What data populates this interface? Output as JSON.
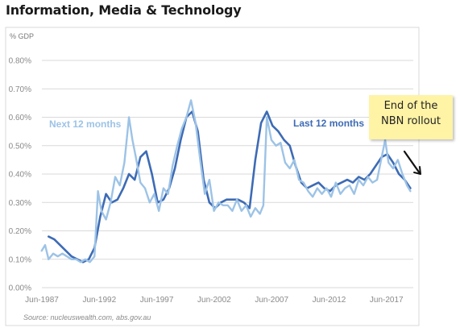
{
  "title": "Information, Media & Technology",
  "chart_data": {
    "type": "line",
    "ylabel": "% GDP",
    "ylim": [
      0,
      0.8
    ],
    "y_ticks": [
      "0.00%",
      "0.10%",
      "0.20%",
      "0.30%",
      "0.40%",
      "0.50%",
      "0.60%",
      "0.70%",
      "0.80%"
    ],
    "y_tick_values": [
      0,
      0.1,
      0.2,
      0.3,
      0.4,
      0.5,
      0.6,
      0.7,
      0.8
    ],
    "xlim": [
      1987.42,
      2019.75
    ],
    "x_ticks": [
      "Jun-1987",
      "Jun-1992",
      "Jun-1997",
      "Jun-2002",
      "Jun-2007",
      "Jun-2012",
      "Jun-2017"
    ],
    "x_tick_values": [
      1987.42,
      1992.42,
      1997.42,
      2002.42,
      2007.42,
      2012.42,
      2017.42
    ],
    "grid": true,
    "source": "Source: nucleuswealth.com, abs.gov.au",
    "series": [
      {
        "name": "Last 12 months",
        "color": "#3d6bb5",
        "x": [
          1988.0,
          1988.5,
          1989.0,
          1989.5,
          1990.0,
          1990.5,
          1991.0,
          1991.5,
          1992.0,
          1992.5,
          1993.0,
          1993.5,
          1994.0,
          1994.5,
          1995.0,
          1995.5,
          1996.0,
          1996.5,
          1997.0,
          1997.5,
          1998.0,
          1998.5,
          1999.0,
          1999.5,
          2000.0,
          2000.5,
          2001.0,
          2001.5,
          2002.0,
          2002.5,
          2003.0,
          2003.5,
          2004.0,
          2004.5,
          2005.0,
          2005.5,
          2006.0,
          2006.5,
          2007.0,
          2007.5,
          2008.0,
          2008.5,
          2009.0,
          2009.5,
          2010.0,
          2010.5,
          2011.0,
          2011.5,
          2012.0,
          2012.5,
          2013.0,
          2013.5,
          2014.0,
          2014.5,
          2015.0,
          2015.5,
          2016.0,
          2016.5,
          2017.0,
          2017.5,
          2018.0,
          2018.5,
          2019.0,
          2019.5
        ],
        "values": [
          0.18,
          0.17,
          0.15,
          0.13,
          0.11,
          0.1,
          0.09,
          0.1,
          0.14,
          0.25,
          0.33,
          0.3,
          0.31,
          0.35,
          0.4,
          0.38,
          0.46,
          0.48,
          0.4,
          0.3,
          0.31,
          0.35,
          0.42,
          0.52,
          0.6,
          0.62,
          0.55,
          0.38,
          0.3,
          0.28,
          0.3,
          0.31,
          0.31,
          0.31,
          0.3,
          0.28,
          0.45,
          0.58,
          0.62,
          0.57,
          0.55,
          0.52,
          0.5,
          0.43,
          0.37,
          0.35,
          0.36,
          0.37,
          0.35,
          0.34,
          0.36,
          0.37,
          0.38,
          0.37,
          0.39,
          0.38,
          0.4,
          0.43,
          0.46,
          0.47,
          0.44,
          0.4,
          0.38,
          0.35
        ]
      },
      {
        "name": "Next 12 months",
        "color": "#9dc3e6",
        "x": [
          1987.4,
          1987.7,
          1988.0,
          1988.4,
          1988.8,
          1989.2,
          1989.6,
          1990.0,
          1990.4,
          1990.8,
          1991.2,
          1991.6,
          1992.0,
          1992.3,
          1992.6,
          1993.0,
          1993.4,
          1993.8,
          1994.2,
          1994.6,
          1995.0,
          1995.3,
          1995.6,
          1996.0,
          1996.4,
          1996.8,
          1997.2,
          1997.6,
          1998.0,
          1998.4,
          1998.8,
          1999.2,
          1999.6,
          2000.0,
          2000.4,
          2000.8,
          2001.2,
          2001.6,
          2002.0,
          2002.4,
          2002.8,
          2003.2,
          2003.6,
          2004.0,
          2004.4,
          2004.8,
          2005.2,
          2005.6,
          2006.0,
          2006.4,
          2006.7,
          2007.0,
          2007.4,
          2007.8,
          2008.2,
          2008.6,
          2009.0,
          2009.4,
          2009.8,
          2010.2,
          2010.6,
          2011.0,
          2011.4,
          2011.8,
          2012.2,
          2012.6,
          2013.0,
          2013.4,
          2013.8,
          2014.2,
          2014.6,
          2015.0,
          2015.4,
          2015.8,
          2016.2,
          2016.6,
          2017.0,
          2017.3,
          2017.6,
          2018.0,
          2018.4,
          2018.8,
          2019.2,
          2019.5
        ],
        "values": [
          0.13,
          0.15,
          0.1,
          0.12,
          0.11,
          0.12,
          0.11,
          0.1,
          0.1,
          0.09,
          0.1,
          0.09,
          0.11,
          0.34,
          0.27,
          0.24,
          0.3,
          0.39,
          0.36,
          0.44,
          0.6,
          0.52,
          0.46,
          0.37,
          0.35,
          0.3,
          0.33,
          0.27,
          0.35,
          0.33,
          0.43,
          0.5,
          0.56,
          0.6,
          0.66,
          0.58,
          0.45,
          0.33,
          0.38,
          0.27,
          0.3,
          0.29,
          0.29,
          0.27,
          0.31,
          0.27,
          0.29,
          0.25,
          0.28,
          0.26,
          0.29,
          0.6,
          0.52,
          0.5,
          0.51,
          0.44,
          0.42,
          0.45,
          0.38,
          0.37,
          0.34,
          0.32,
          0.35,
          0.33,
          0.35,
          0.32,
          0.37,
          0.33,
          0.35,
          0.36,
          0.33,
          0.38,
          0.36,
          0.39,
          0.37,
          0.38,
          0.46,
          0.52,
          0.44,
          0.42,
          0.45,
          0.4,
          0.36,
          0.34
        ]
      }
    ],
    "annotation": {
      "text_line1": "End of the",
      "text_line2": "NBN rollout"
    }
  }
}
